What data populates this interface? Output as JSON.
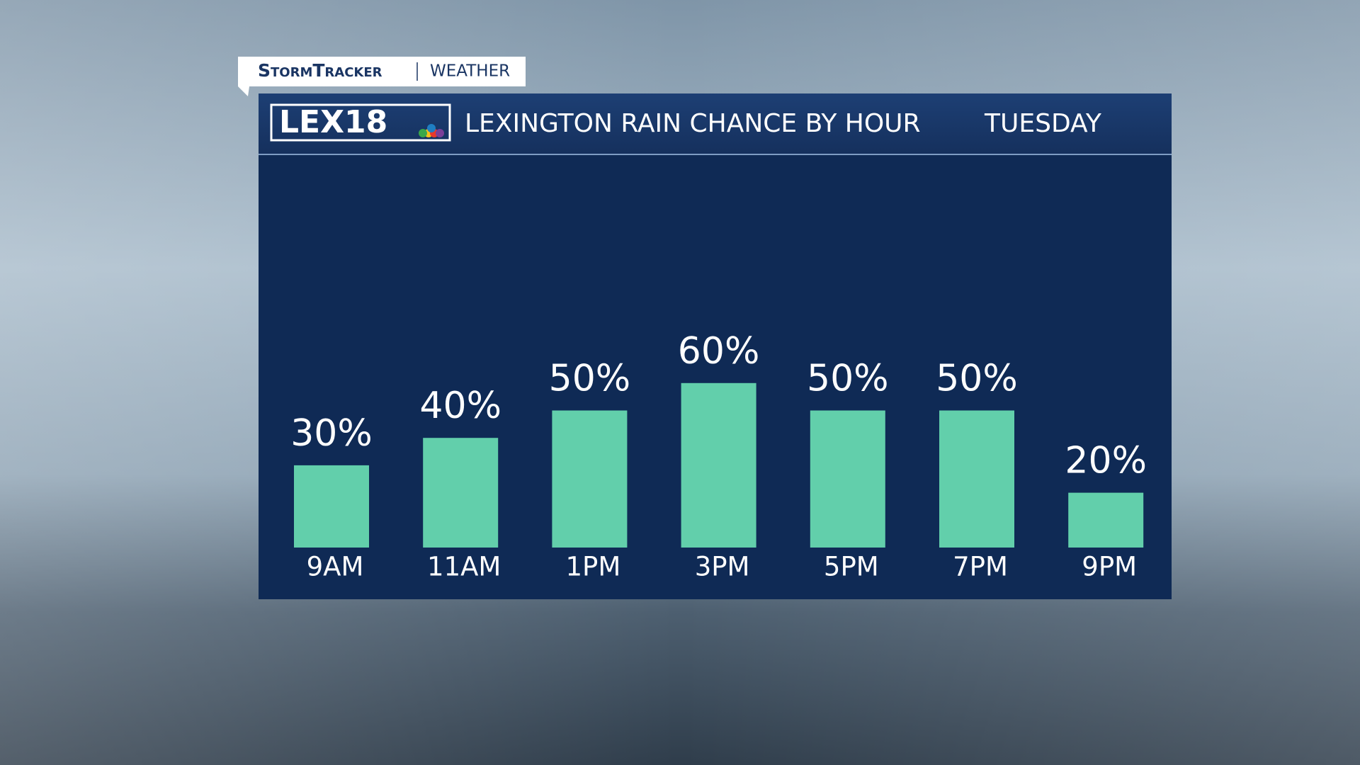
{
  "branding": {
    "show": "StormTracker",
    "section": "WEATHER",
    "logo": "LEX18"
  },
  "chart_data": {
    "type": "bar",
    "title": "LEXINGTON RAIN CHANCE BY HOUR",
    "subtitle": "TUESDAY",
    "categories": [
      "9AM",
      "11AM",
      "1PM",
      "3PM",
      "5PM",
      "7PM",
      "9PM"
    ],
    "values": [
      30,
      40,
      50,
      60,
      50,
      50,
      20
    ],
    "value_labels": [
      "30%",
      "40%",
      "50%",
      "60%",
      "50%",
      "50%",
      "20%"
    ],
    "color": "#62cfab"
  }
}
